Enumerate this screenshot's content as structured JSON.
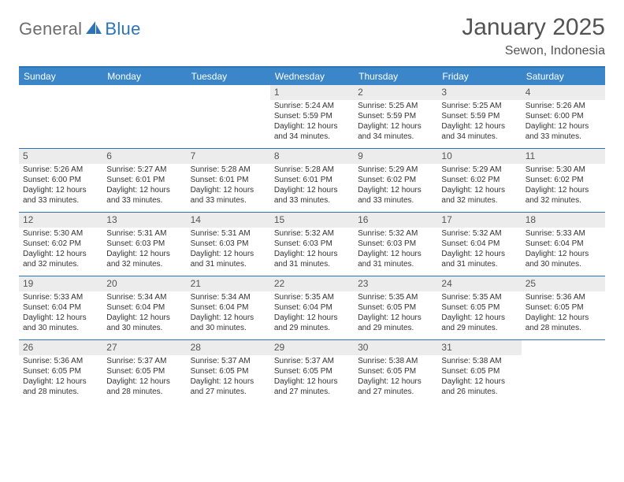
{
  "logo": {
    "general": "General",
    "blue": "Blue"
  },
  "title": "January 2025",
  "location": "Sewon, Indonesia",
  "colors": {
    "header_bar": "#3a86c8",
    "rule": "#2d74b7",
    "daynum_bg": "#ececec",
    "text_dark": "#333333",
    "text_grey": "#535353",
    "logo_grey": "#6d6d6d",
    "logo_blue": "#2d74b7",
    "background": "#ffffff",
    "weekday_text": "#ffffff"
  },
  "weekdays": [
    "Sunday",
    "Monday",
    "Tuesday",
    "Wednesday",
    "Thursday",
    "Friday",
    "Saturday"
  ],
  "weeks": [
    [
      {
        "n": "",
        "sr": "",
        "ss": "",
        "d1": "",
        "d2": "",
        "empty": true
      },
      {
        "n": "",
        "sr": "",
        "ss": "",
        "d1": "",
        "d2": "",
        "empty": true
      },
      {
        "n": "",
        "sr": "",
        "ss": "",
        "d1": "",
        "d2": "",
        "empty": true
      },
      {
        "n": "1",
        "sr": "Sunrise: 5:24 AM",
        "ss": "Sunset: 5:59 PM",
        "d1": "Daylight: 12 hours",
        "d2": "and 34 minutes."
      },
      {
        "n": "2",
        "sr": "Sunrise: 5:25 AM",
        "ss": "Sunset: 5:59 PM",
        "d1": "Daylight: 12 hours",
        "d2": "and 34 minutes."
      },
      {
        "n": "3",
        "sr": "Sunrise: 5:25 AM",
        "ss": "Sunset: 5:59 PM",
        "d1": "Daylight: 12 hours",
        "d2": "and 34 minutes."
      },
      {
        "n": "4",
        "sr": "Sunrise: 5:26 AM",
        "ss": "Sunset: 6:00 PM",
        "d1": "Daylight: 12 hours",
        "d2": "and 33 minutes."
      }
    ],
    [
      {
        "n": "5",
        "sr": "Sunrise: 5:26 AM",
        "ss": "Sunset: 6:00 PM",
        "d1": "Daylight: 12 hours",
        "d2": "and 33 minutes."
      },
      {
        "n": "6",
        "sr": "Sunrise: 5:27 AM",
        "ss": "Sunset: 6:01 PM",
        "d1": "Daylight: 12 hours",
        "d2": "and 33 minutes."
      },
      {
        "n": "7",
        "sr": "Sunrise: 5:28 AM",
        "ss": "Sunset: 6:01 PM",
        "d1": "Daylight: 12 hours",
        "d2": "and 33 minutes."
      },
      {
        "n": "8",
        "sr": "Sunrise: 5:28 AM",
        "ss": "Sunset: 6:01 PM",
        "d1": "Daylight: 12 hours",
        "d2": "and 33 minutes."
      },
      {
        "n": "9",
        "sr": "Sunrise: 5:29 AM",
        "ss": "Sunset: 6:02 PM",
        "d1": "Daylight: 12 hours",
        "d2": "and 33 minutes."
      },
      {
        "n": "10",
        "sr": "Sunrise: 5:29 AM",
        "ss": "Sunset: 6:02 PM",
        "d1": "Daylight: 12 hours",
        "d2": "and 32 minutes."
      },
      {
        "n": "11",
        "sr": "Sunrise: 5:30 AM",
        "ss": "Sunset: 6:02 PM",
        "d1": "Daylight: 12 hours",
        "d2": "and 32 minutes."
      }
    ],
    [
      {
        "n": "12",
        "sr": "Sunrise: 5:30 AM",
        "ss": "Sunset: 6:02 PM",
        "d1": "Daylight: 12 hours",
        "d2": "and 32 minutes."
      },
      {
        "n": "13",
        "sr": "Sunrise: 5:31 AM",
        "ss": "Sunset: 6:03 PM",
        "d1": "Daylight: 12 hours",
        "d2": "and 32 minutes."
      },
      {
        "n": "14",
        "sr": "Sunrise: 5:31 AM",
        "ss": "Sunset: 6:03 PM",
        "d1": "Daylight: 12 hours",
        "d2": "and 31 minutes."
      },
      {
        "n": "15",
        "sr": "Sunrise: 5:32 AM",
        "ss": "Sunset: 6:03 PM",
        "d1": "Daylight: 12 hours",
        "d2": "and 31 minutes."
      },
      {
        "n": "16",
        "sr": "Sunrise: 5:32 AM",
        "ss": "Sunset: 6:03 PM",
        "d1": "Daylight: 12 hours",
        "d2": "and 31 minutes."
      },
      {
        "n": "17",
        "sr": "Sunrise: 5:32 AM",
        "ss": "Sunset: 6:04 PM",
        "d1": "Daylight: 12 hours",
        "d2": "and 31 minutes."
      },
      {
        "n": "18",
        "sr": "Sunrise: 5:33 AM",
        "ss": "Sunset: 6:04 PM",
        "d1": "Daylight: 12 hours",
        "d2": "and 30 minutes."
      }
    ],
    [
      {
        "n": "19",
        "sr": "Sunrise: 5:33 AM",
        "ss": "Sunset: 6:04 PM",
        "d1": "Daylight: 12 hours",
        "d2": "and 30 minutes."
      },
      {
        "n": "20",
        "sr": "Sunrise: 5:34 AM",
        "ss": "Sunset: 6:04 PM",
        "d1": "Daylight: 12 hours",
        "d2": "and 30 minutes."
      },
      {
        "n": "21",
        "sr": "Sunrise: 5:34 AM",
        "ss": "Sunset: 6:04 PM",
        "d1": "Daylight: 12 hours",
        "d2": "and 30 minutes."
      },
      {
        "n": "22",
        "sr": "Sunrise: 5:35 AM",
        "ss": "Sunset: 6:04 PM",
        "d1": "Daylight: 12 hours",
        "d2": "and 29 minutes."
      },
      {
        "n": "23",
        "sr": "Sunrise: 5:35 AM",
        "ss": "Sunset: 6:05 PM",
        "d1": "Daylight: 12 hours",
        "d2": "and 29 minutes."
      },
      {
        "n": "24",
        "sr": "Sunrise: 5:35 AM",
        "ss": "Sunset: 6:05 PM",
        "d1": "Daylight: 12 hours",
        "d2": "and 29 minutes."
      },
      {
        "n": "25",
        "sr": "Sunrise: 5:36 AM",
        "ss": "Sunset: 6:05 PM",
        "d1": "Daylight: 12 hours",
        "d2": "and 28 minutes."
      }
    ],
    [
      {
        "n": "26",
        "sr": "Sunrise: 5:36 AM",
        "ss": "Sunset: 6:05 PM",
        "d1": "Daylight: 12 hours",
        "d2": "and 28 minutes."
      },
      {
        "n": "27",
        "sr": "Sunrise: 5:37 AM",
        "ss": "Sunset: 6:05 PM",
        "d1": "Daylight: 12 hours",
        "d2": "and 28 minutes."
      },
      {
        "n": "28",
        "sr": "Sunrise: 5:37 AM",
        "ss": "Sunset: 6:05 PM",
        "d1": "Daylight: 12 hours",
        "d2": "and 27 minutes."
      },
      {
        "n": "29",
        "sr": "Sunrise: 5:37 AM",
        "ss": "Sunset: 6:05 PM",
        "d1": "Daylight: 12 hours",
        "d2": "and 27 minutes."
      },
      {
        "n": "30",
        "sr": "Sunrise: 5:38 AM",
        "ss": "Sunset: 6:05 PM",
        "d1": "Daylight: 12 hours",
        "d2": "and 27 minutes."
      },
      {
        "n": "31",
        "sr": "Sunrise: 5:38 AM",
        "ss": "Sunset: 6:05 PM",
        "d1": "Daylight: 12 hours",
        "d2": "and 26 minutes."
      },
      {
        "n": "",
        "sr": "",
        "ss": "",
        "d1": "",
        "d2": "",
        "empty": true
      }
    ]
  ]
}
